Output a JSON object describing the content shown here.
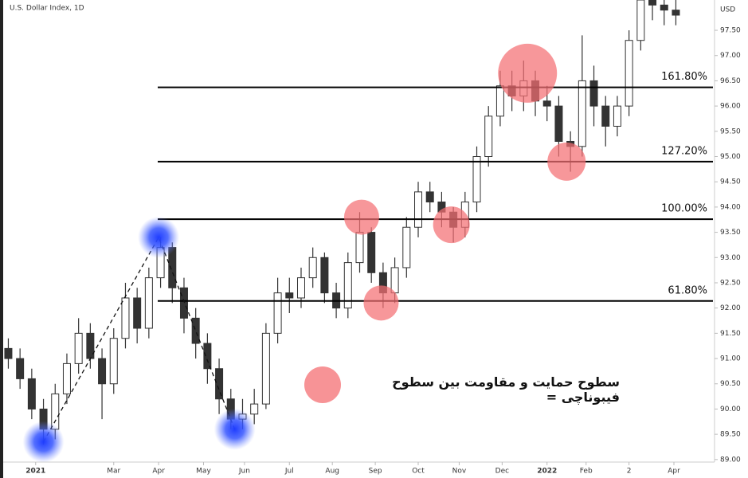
{
  "chart_data": {
    "type": "candlestick",
    "title": "U.S. Dollar Index, 1D",
    "y_unit": "USD",
    "color": "#333333",
    "xlim": [
      -15,
      347
    ],
    "ylim": [
      88.95,
      98.1
    ],
    "xticks": [
      {
        "value": 0,
        "label": "2021"
      },
      {
        "value": 40,
        "label": "Mar"
      },
      {
        "value": 63,
        "label": "Apr"
      },
      {
        "value": 86,
        "label": "May"
      },
      {
        "value": 107,
        "label": "Jun"
      },
      {
        "value": 130,
        "label": "Jul"
      },
      {
        "value": 152,
        "label": "Aug"
      },
      {
        "value": 174,
        "label": "Sep"
      },
      {
        "value": 196,
        "label": "Oct"
      },
      {
        "value": 217,
        "label": "Nov"
      },
      {
        "value": 239,
        "label": "Dec"
      },
      {
        "value": 262,
        "label": "2022"
      },
      {
        "value": 282,
        "label": "Feb"
      },
      {
        "value": 304,
        "label": "2"
      },
      {
        "value": 327,
        "label": "Apr"
      }
    ],
    "yticks": [
      {
        "value": 89,
        "label": "89.00"
      },
      {
        "value": 89.5,
        "label": "89.50"
      },
      {
        "value": 90,
        "label": "90.00"
      },
      {
        "value": 90.5,
        "label": "90.50"
      },
      {
        "value": 91,
        "label": "91.00"
      },
      {
        "value": 91.5,
        "label": "91.50"
      },
      {
        "value": 92,
        "label": "92.00"
      },
      {
        "value": 92.5,
        "label": "92.50"
      },
      {
        "value": 93,
        "label": "93.00"
      },
      {
        "value": 93.5,
        "label": "93.50"
      },
      {
        "value": 94,
        "label": "94.00"
      },
      {
        "value": 94.5,
        "label": "94.50"
      },
      {
        "value": 95,
        "label": "95.00"
      },
      {
        "value": 95.5,
        "label": "95.50"
      },
      {
        "value": 96,
        "label": "96.00"
      },
      {
        "value": 96.5,
        "label": "96.50"
      },
      {
        "value": 97,
        "label": "97.00"
      },
      {
        "value": 97.5,
        "label": "97.50"
      }
    ],
    "x": [
      -14,
      -8,
      -2,
      4,
      10,
      16,
      22,
      28,
      34,
      40,
      46,
      52,
      58,
      64,
      70,
      76,
      82,
      88,
      94,
      100,
      106,
      112,
      118,
      124,
      130,
      136,
      142,
      148,
      154,
      160,
      166,
      172,
      178,
      184,
      190,
      196,
      202,
      208,
      214,
      220,
      226,
      232,
      238,
      244,
      250,
      256,
      262,
      268,
      274,
      280,
      286,
      292,
      298,
      304,
      310,
      316,
      322,
      328
    ],
    "open": [
      91.2,
      91.0,
      90.6,
      90.0,
      89.6,
      90.3,
      90.9,
      91.5,
      91.0,
      90.5,
      91.4,
      92.2,
      91.6,
      92.6,
      93.2,
      92.4,
      91.8,
      91.3,
      90.8,
      90.2,
      89.8,
      89.9,
      90.1,
      91.5,
      92.3,
      92.2,
      92.6,
      93.0,
      92.3,
      92.0,
      92.9,
      93.5,
      92.7,
      92.3,
      92.8,
      93.6,
      94.3,
      94.1,
      93.9,
      93.6,
      94.1,
      95.0,
      95.8,
      96.4,
      96.2,
      96.5,
      96.1,
      96.0,
      95.3,
      95.2,
      96.5,
      96.0,
      95.6,
      96.0,
      97.3,
      98.1,
      98.0,
      97.9
    ],
    "high": [
      91.4,
      91.2,
      90.8,
      90.2,
      90.5,
      91.1,
      91.8,
      91.7,
      91.2,
      91.6,
      92.5,
      92.4,
      92.8,
      93.4,
      93.3,
      92.6,
      92.0,
      91.5,
      91.0,
      90.4,
      90.2,
      90.4,
      91.7,
      92.6,
      92.6,
      92.8,
      93.2,
      93.1,
      92.5,
      93.1,
      93.9,
      93.6,
      92.9,
      93.0,
      93.8,
      94.5,
      94.5,
      94.3,
      94.0,
      94.3,
      95.2,
      96.0,
      96.7,
      96.7,
      96.9,
      96.7,
      96.4,
      96.2,
      95.5,
      97.4,
      96.8,
      96.2,
      96.2,
      97.5,
      98.3,
      98.3,
      98.2,
      98.1
    ],
    "low": [
      90.8,
      90.4,
      89.8,
      89.3,
      89.4,
      90.1,
      90.7,
      90.8,
      89.8,
      90.3,
      91.2,
      91.3,
      91.4,
      92.4,
      92.1,
      91.5,
      91.0,
      90.5,
      89.9,
      89.6,
      89.6,
      89.7,
      90.0,
      91.3,
      91.9,
      92.0,
      92.4,
      92.1,
      91.8,
      91.8,
      92.7,
      92.5,
      92.0,
      92.1,
      92.6,
      93.4,
      93.9,
      93.6,
      93.3,
      93.4,
      93.9,
      94.8,
      95.6,
      95.9,
      95.9,
      95.8,
      95.7,
      95.0,
      94.7,
      95.0,
      95.6,
      95.2,
      95.4,
      95.8,
      97.1,
      97.7,
      97.6,
      97.6
    ],
    "close": [
      91.0,
      90.6,
      90.0,
      89.6,
      90.3,
      90.9,
      91.5,
      91.0,
      90.5,
      91.4,
      92.2,
      91.6,
      92.6,
      93.2,
      92.4,
      91.8,
      91.3,
      90.8,
      90.2,
      89.8,
      89.9,
      90.1,
      91.5,
      92.3,
      92.2,
      92.6,
      93.0,
      92.3,
      92.0,
      92.9,
      93.5,
      92.7,
      92.3,
      92.8,
      93.6,
      94.3,
      94.1,
      93.9,
      93.6,
      94.1,
      95.0,
      95.8,
      96.4,
      96.2,
      96.5,
      96.1,
      96.0,
      95.3,
      95.2,
      96.5,
      96.0,
      95.6,
      96.0,
      97.3,
      98.1,
      98.0,
      97.9,
      97.8
    ],
    "fibonacci_levels": [
      {
        "label": "161.80%",
        "value": 96.37
      },
      {
        "label": "127.20%",
        "value": 94.9
      },
      {
        "label": "100.00%",
        "value": 93.76
      },
      {
        "label": "61.80%",
        "value": 92.14
      }
    ],
    "swing_points": [
      {
        "x": 4,
        "y": 89.35
      },
      {
        "x": 63,
        "y": 93.4
      },
      {
        "x": 102,
        "y": 89.6
      }
    ],
    "support_resistance_points": [
      {
        "x": 167,
        "y": 93.8
      },
      {
        "x": 177,
        "y": 92.1
      },
      {
        "x": 213,
        "y": 93.65
      },
      {
        "x": 252,
        "y": 96.65
      },
      {
        "x": 272,
        "y": 94.9
      }
    ],
    "legend_text": "سطوح حمایت و مقاومت بین سطوح فیبوناچی ="
  }
}
